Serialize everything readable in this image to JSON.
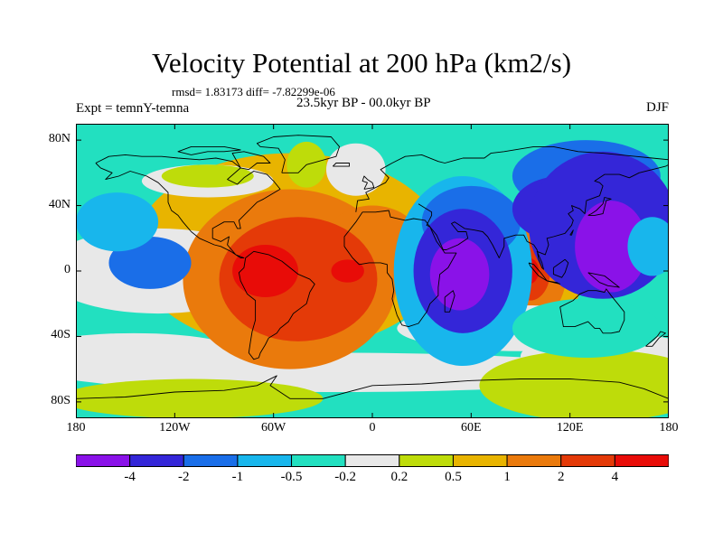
{
  "title": "Velocity Potential at 200 hPa (km2/s)",
  "stats": "rmsd= 1.83173 diff= -7.82299e-06",
  "experiment": "Expt = temnY-temna",
  "period": "23.5kyr BP - 00.0kyr BP",
  "season": "DJF",
  "y_axis": {
    "min": -90,
    "max": 90,
    "ticks": [
      {
        "label": "80N",
        "value": 80
      },
      {
        "label": "40N",
        "value": 40
      },
      {
        "label": "0",
        "value": 0
      },
      {
        "label": "40S",
        "value": -40
      },
      {
        "label": "80S",
        "value": -80
      }
    ]
  },
  "x_axis": {
    "min": -180,
    "max": 180,
    "ticks": [
      {
        "label": "180",
        "value": -180
      },
      {
        "label": "120W",
        "value": -120
      },
      {
        "label": "60W",
        "value": -60
      },
      {
        "label": "0",
        "value": 0
      },
      {
        "label": "60E",
        "value": 60
      },
      {
        "label": "120E",
        "value": 120
      },
      {
        "label": "180",
        "value": 180
      }
    ]
  },
  "colorbar": {
    "levels": [
      "-4",
      "-2",
      "-1",
      "-0.5",
      "-0.2",
      "0.2",
      "0.5",
      "1",
      "2",
      "4"
    ],
    "colors": [
      "#8a12e8",
      "#3426d8",
      "#1a6ee8",
      "#18b6ec",
      "#22e0c0",
      "#e8e8e8",
      "#bedc0a",
      "#e8b400",
      "#ea7a0c",
      "#e43a08",
      "#e80c08"
    ]
  },
  "field": {
    "background_class": 4,
    "regions": [
      {
        "lon": -50,
        "lat": 12,
        "rlon": 95,
        "rlat": 60,
        "cls": 7
      },
      {
        "lon": -10,
        "lat": 62,
        "rlon": 18,
        "rlat": 16,
        "cls": 5
      },
      {
        "lon": -130,
        "lat": 0,
        "rlon": 70,
        "rlat": 26,
        "cls": 5
      },
      {
        "lon": -20,
        "lat": -62,
        "rlon": 175,
        "rlat": 12,
        "cls": 5
      },
      {
        "lon": -145,
        "lat": -52,
        "rlon": 70,
        "rlat": 14,
        "cls": 5
      },
      {
        "lon": 145,
        "lat": -52,
        "rlon": 55,
        "rlat": 14,
        "cls": 5
      },
      {
        "lon": 135,
        "lat": -70,
        "rlon": 70,
        "rlat": 22,
        "cls": 6
      },
      {
        "lon": -110,
        "lat": -78,
        "rlon": 80,
        "rlat": 12,
        "cls": 6
      },
      {
        "lon": -50,
        "lat": -5,
        "rlon": 65,
        "rlat": 55,
        "cls": 8
      },
      {
        "lon": 0,
        "lat": 20,
        "rlon": 28,
        "rlat": 20,
        "cls": 8
      },
      {
        "lon": -45,
        "lat": -5,
        "rlon": 48,
        "rlat": 38,
        "cls": 9
      },
      {
        "lon": -65,
        "lat": 0,
        "rlon": 20,
        "rlat": 16,
        "cls": 10
      },
      {
        "lon": -15,
        "lat": 0,
        "rlon": 10,
        "rlat": 7,
        "cls": 10
      },
      {
        "lon": 100,
        "lat": 2,
        "rlon": 28,
        "rlat": 40,
        "cls": 7
      },
      {
        "lon": 98,
        "lat": 0,
        "rlon": 20,
        "rlat": 30,
        "cls": 8
      },
      {
        "lon": 96,
        "lat": 0,
        "rlon": 12,
        "rlat": 18,
        "cls": 9
      },
      {
        "lon": 95,
        "lat": 0,
        "rlon": 6,
        "rlat": 8,
        "cls": 10
      },
      {
        "lon": 90,
        "lat": -35,
        "rlon": 75,
        "rlat": 14,
        "cls": 5
      },
      {
        "lon": 55,
        "lat": 0,
        "rlon": 42,
        "rlat": 58,
        "cls": 3
      },
      {
        "lon": 60,
        "lat": 30,
        "rlon": 30,
        "rlat": 22,
        "cls": 2
      },
      {
        "lon": 55,
        "lat": 0,
        "rlon": 30,
        "rlat": 38,
        "cls": 1
      },
      {
        "lon": 53,
        "lat": -2,
        "rlon": 18,
        "rlat": 22,
        "cls": 0
      },
      {
        "lon": 130,
        "lat": 58,
        "rlon": 45,
        "rlat": 22,
        "cls": 2
      },
      {
        "lon": 115,
        "lat": 38,
        "rlon": 30,
        "rlat": 20,
        "cls": 1
      },
      {
        "lon": 140,
        "lat": 28,
        "rlon": 45,
        "rlat": 45,
        "cls": 1
      },
      {
        "lon": 145,
        "lat": 15,
        "rlon": 22,
        "rlat": 28,
        "cls": 0
      },
      {
        "lon": -135,
        "lat": 5,
        "rlon": 25,
        "rlat": 16,
        "cls": 2
      },
      {
        "lon": 130,
        "lat": -35,
        "rlon": 45,
        "rlat": 18,
        "cls": 4
      },
      {
        "lon": -155,
        "lat": 30,
        "rlon": 25,
        "rlat": 18,
        "cls": 3
      },
      {
        "lon": -40,
        "lat": 65,
        "rlon": 12,
        "rlat": 14,
        "cls": 6
      },
      {
        "lon": 170,
        "lat": 15,
        "rlon": 15,
        "rlat": 18,
        "cls": 3
      },
      {
        "lon": -100,
        "lat": 55,
        "rlon": 40,
        "rlat": 10,
        "cls": 5
      },
      {
        "lon": -100,
        "lat": 58,
        "rlon": 28,
        "rlat": 7,
        "cls": 6
      }
    ]
  },
  "coastlines": [
    [
      [
        -168,
        66
      ],
      [
        -160,
        70
      ],
      [
        -150,
        71
      ],
      [
        -140,
        70
      ],
      [
        -128,
        70
      ],
      [
        -118,
        69
      ],
      [
        -105,
        68
      ],
      [
        -95,
        69
      ],
      [
        -85,
        67
      ],
      [
        -80,
        63
      ],
      [
        -88,
        56
      ],
      [
        -82,
        53
      ],
      [
        -78,
        57
      ],
      [
        -72,
        61
      ],
      [
        -64,
        59
      ],
      [
        -60,
        55
      ],
      [
        -56,
        50
      ],
      [
        -66,
        44
      ],
      [
        -70,
        42
      ],
      [
        -76,
        36
      ],
      [
        -81,
        31
      ],
      [
        -80,
        26
      ],
      [
        -82,
        26
      ],
      [
        -84,
        30
      ],
      [
        -90,
        30
      ],
      [
        -97,
        26
      ],
      [
        -97,
        20
      ],
      [
        -92,
        18
      ],
      [
        -87,
        21
      ],
      [
        -88,
        16
      ],
      [
        -83,
        10
      ],
      [
        -78,
        8
      ],
      [
        -80,
        8
      ],
      [
        -86,
        12
      ],
      [
        -92,
        15
      ],
      [
        -96,
        16
      ],
      [
        -105,
        20
      ],
      [
        -110,
        24
      ],
      [
        -115,
        30
      ],
      [
        -118,
        34
      ],
      [
        -122,
        37
      ],
      [
        -124,
        42
      ],
      [
        -124,
        48
      ],
      [
        -130,
        54
      ],
      [
        -137,
        58
      ],
      [
        -147,
        61
      ],
      [
        -154,
        58
      ],
      [
        -162,
        56
      ],
      [
        -158,
        60
      ],
      [
        -165,
        63
      ],
      [
        -168,
        66
      ]
    ],
    [
      [
        -77,
        8
      ],
      [
        -72,
        12
      ],
      [
        -63,
        10
      ],
      [
        -55,
        6
      ],
      [
        -50,
        2
      ],
      [
        -45,
        -2
      ],
      [
        -38,
        -5
      ],
      [
        -35,
        -8
      ],
      [
        -38,
        -13
      ],
      [
        -40,
        -20
      ],
      [
        -44,
        -23
      ],
      [
        -48,
        -26
      ],
      [
        -51,
        -31
      ],
      [
        -56,
        -35
      ],
      [
        -58,
        -38
      ],
      [
        -63,
        -41
      ],
      [
        -65,
        -45
      ],
      [
        -68,
        -50
      ],
      [
        -69,
        -53
      ],
      [
        -72,
        -54
      ],
      [
        -75,
        -50
      ],
      [
        -74,
        -43
      ],
      [
        -73,
        -37
      ],
      [
        -71,
        -30
      ],
      [
        -71,
        -18
      ],
      [
        -76,
        -14
      ],
      [
        -80,
        -6
      ],
      [
        -81,
        -1
      ],
      [
        -78,
        2
      ],
      [
        -77,
        8
      ]
    ],
    [
      [
        -6,
        36
      ],
      [
        -10,
        30
      ],
      [
        -17,
        21
      ],
      [
        -17,
        15
      ],
      [
        -12,
        8
      ],
      [
        -8,
        4
      ],
      [
        -2,
        5
      ],
      [
        5,
        5
      ],
      [
        9,
        4
      ],
      [
        9,
        -1
      ],
      [
        12,
        -5
      ],
      [
        13,
        -12
      ],
      [
        12,
        -17
      ],
      [
        15,
        -27
      ],
      [
        18,
        -33
      ],
      [
        22,
        -34
      ],
      [
        28,
        -32
      ],
      [
        33,
        -25
      ],
      [
        35,
        -20
      ],
      [
        40,
        -15
      ],
      [
        40,
        -10
      ],
      [
        41,
        -2
      ],
      [
        46,
        2
      ],
      [
        51,
        11
      ],
      [
        44,
        11
      ],
      [
        42,
        14
      ],
      [
        39,
        18
      ],
      [
        35,
        27
      ],
      [
        32,
        31
      ],
      [
        25,
        32
      ],
      [
        20,
        31
      ],
      [
        11,
        33
      ],
      [
        10,
        37
      ],
      [
        2,
        36
      ],
      [
        -6,
        36
      ]
    ],
    [
      [
        -10,
        36
      ],
      [
        -9,
        43
      ],
      [
        -2,
        44
      ],
      [
        -4,
        48
      ],
      [
        2,
        51
      ],
      [
        8,
        54
      ],
      [
        10,
        57
      ],
      [
        5,
        62
      ],
      [
        12,
        66
      ],
      [
        20,
        70
      ],
      [
        30,
        71
      ],
      [
        40,
        67
      ],
      [
        44,
        66
      ],
      [
        55,
        69
      ],
      [
        68,
        69
      ],
      [
        72,
        72
      ],
      [
        80,
        73
      ],
      [
        98,
        76
      ],
      [
        110,
        76
      ],
      [
        125,
        73
      ],
      [
        140,
        72
      ],
      [
        160,
        70
      ],
      [
        170,
        69
      ],
      [
        180,
        68
      ]
    ],
    [
      [
        28,
        41
      ],
      [
        36,
        36
      ],
      [
        36,
        34
      ],
      [
        33,
        28
      ],
      [
        35,
        27
      ],
      [
        39,
        22
      ],
      [
        43,
        13
      ],
      [
        45,
        13
      ],
      [
        52,
        16
      ],
      [
        58,
        20
      ],
      [
        57,
        24
      ],
      [
        52,
        24
      ],
      [
        48,
        29
      ],
      [
        50,
        30
      ],
      [
        56,
        26
      ],
      [
        62,
        25
      ],
      [
        67,
        24
      ],
      [
        70,
        21
      ],
      [
        73,
        16
      ],
      [
        77,
        8
      ],
      [
        80,
        15
      ],
      [
        80,
        20
      ],
      [
        87,
        22
      ],
      [
        92,
        22
      ],
      [
        94,
        18
      ],
      [
        98,
        16
      ],
      [
        100,
        13
      ],
      [
        101,
        7
      ],
      [
        103,
        2
      ],
      [
        104,
        1
      ],
      [
        103,
        5
      ],
      [
        100,
        12
      ],
      [
        105,
        10
      ],
      [
        107,
        16
      ],
      [
        106,
        20
      ],
      [
        110,
        21
      ],
      [
        117,
        23
      ],
      [
        121,
        28
      ],
      [
        122,
        31
      ],
      [
        119,
        35
      ],
      [
        122,
        37
      ],
      [
        121,
        40
      ],
      [
        126,
        38
      ],
      [
        129,
        35
      ],
      [
        130,
        43
      ],
      [
        138,
        46
      ],
      [
        140,
        52
      ],
      [
        138,
        54
      ],
      [
        135,
        55
      ],
      [
        141,
        59
      ],
      [
        150,
        59
      ],
      [
        156,
        57
      ],
      [
        162,
        60
      ],
      [
        170,
        62
      ],
      [
        178,
        64
      ],
      [
        180,
        65
      ]
    ],
    [
      [
        114,
        -22
      ],
      [
        116,
        -34
      ],
      [
        123,
        -34
      ],
      [
        131,
        -31
      ],
      [
        135,
        -35
      ],
      [
        138,
        -35
      ],
      [
        140,
        -38
      ],
      [
        145,
        -38
      ],
      [
        150,
        -37
      ],
      [
        153,
        -30
      ],
      [
        153,
        -25
      ],
      [
        149,
        -20
      ],
      [
        145,
        -15
      ],
      [
        142,
        -11
      ],
      [
        141,
        -13
      ],
      [
        136,
        -12
      ],
      [
        131,
        -12
      ],
      [
        126,
        -14
      ],
      [
        122,
        -18
      ],
      [
        114,
        -22
      ]
    ],
    [
      [
        -52,
        -45
      ],
      [
        -52,
        -45
      ]
    ],
    [
      [
        -55,
        60
      ],
      [
        -45,
        60
      ],
      [
        -40,
        65
      ],
      [
        -22,
        70
      ],
      [
        -20,
        76
      ],
      [
        -25,
        82
      ],
      [
        -45,
        83
      ],
      [
        -60,
        82
      ],
      [
        -70,
        78
      ],
      [
        -68,
        76
      ],
      [
        -57,
        75
      ],
      [
        -53,
        68
      ],
      [
        -55,
        60
      ]
    ],
    [
      [
        44,
        -16
      ],
      [
        44,
        -25
      ],
      [
        47,
        -25
      ],
      [
        50,
        -15
      ],
      [
        49,
        -12
      ],
      [
        44,
        -16
      ]
    ],
    [
      [
        95,
        5
      ],
      [
        98,
        4
      ],
      [
        103,
        -2
      ],
      [
        106,
        -6
      ],
      [
        101,
        -3
      ],
      [
        96,
        3
      ],
      [
        95,
        5
      ]
    ],
    [
      [
        106,
        -6
      ],
      [
        114,
        -8
      ],
      [
        112,
        -7
      ],
      [
        106,
        -6
      ]
    ],
    [
      [
        110,
        2
      ],
      [
        117,
        7
      ],
      [
        119,
        5
      ],
      [
        117,
        -1
      ],
      [
        115,
        -4
      ],
      [
        110,
        -2
      ],
      [
        110,
        2
      ]
    ],
    [
      [
        131,
        34
      ],
      [
        135,
        34
      ],
      [
        140,
        35
      ],
      [
        141,
        39
      ],
      [
        142,
        43
      ],
      [
        145,
        44
      ],
      [
        141,
        45
      ],
      [
        140,
        41
      ],
      [
        136,
        37
      ],
      [
        133,
        35
      ],
      [
        131,
        34
      ]
    ],
    [
      [
        131,
        -1
      ],
      [
        141,
        -3
      ],
      [
        150,
        -10
      ],
      [
        143,
        -9
      ],
      [
        138,
        -7
      ],
      [
        131,
        -1
      ]
    ],
    [
      [
        -5,
        50
      ],
      [
        1,
        51
      ],
      [
        0,
        54
      ],
      [
        -3,
        56
      ],
      [
        -5,
        58
      ],
      [
        -6,
        55
      ],
      [
        -3,
        54
      ],
      [
        -5,
        50
      ]
    ],
    [
      [
        -180,
        -78
      ],
      [
        -150,
        -77
      ],
      [
        -120,
        -74
      ],
      [
        -90,
        -73
      ],
      [
        -70,
        -70
      ],
      [
        -60,
        -65
      ],
      [
        -58,
        -64
      ],
      [
        -62,
        -70
      ],
      [
        -50,
        -78
      ],
      [
        -30,
        -78
      ],
      [
        0,
        -70
      ],
      [
        30,
        -69
      ],
      [
        60,
        -67
      ],
      [
        90,
        -66
      ],
      [
        120,
        -66
      ],
      [
        150,
        -68
      ],
      [
        165,
        -72
      ],
      [
        180,
        -78
      ]
    ],
    [
      [
        -110,
        71
      ],
      [
        -100,
        73
      ],
      [
        -90,
        73
      ],
      [
        -80,
        74
      ],
      [
        -90,
        76
      ],
      [
        -110,
        76
      ],
      [
        -118,
        73
      ],
      [
        -110,
        71
      ]
    ],
    [
      [
        -80,
        63
      ],
      [
        -75,
        62
      ],
      [
        -70,
        66
      ],
      [
        -62,
        66
      ],
      [
        -66,
        70
      ],
      [
        -78,
        73
      ],
      [
        -85,
        72
      ],
      [
        -80,
        63
      ]
    ],
    [
      [
        120,
        22
      ],
      [
        122,
        25
      ],
      [
        121,
        22
      ],
      [
        120,
        22
      ]
    ],
    [
      [
        -24,
        64
      ],
      [
        -14,
        64
      ],
      [
        -14,
        66
      ],
      [
        -22,
        66
      ],
      [
        -24,
        64
      ]
    ],
    [
      [
        166,
        -46
      ],
      [
        173,
        -40
      ],
      [
        175,
        -37
      ],
      [
        178,
        -38
      ],
      [
        174,
        -41
      ],
      [
        170,
        -46
      ],
      [
        166,
        -46
      ]
    ]
  ]
}
